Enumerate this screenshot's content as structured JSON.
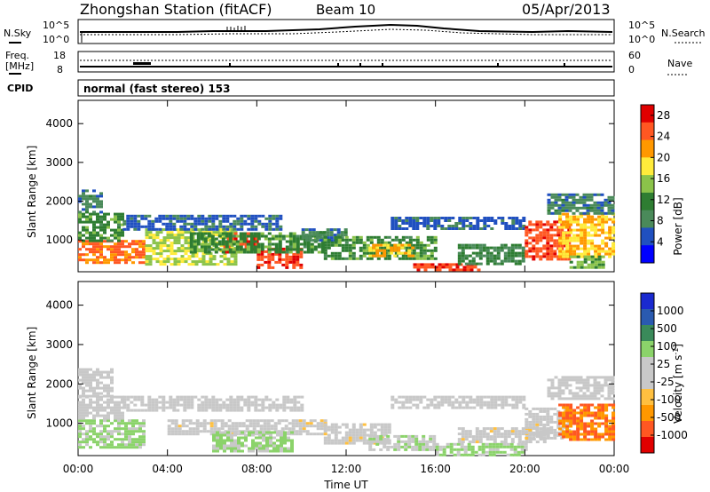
{
  "header": {
    "title": "Zhongshan Station (fitACF)",
    "beam": "Beam 10",
    "date": "05/Apr/2013"
  },
  "strip_labels": {
    "nsky": "N.Sky",
    "nsearch": "N.Search",
    "freq_line1": "Freq.",
    "freq_line2": "[MHz]",
    "nave": "Nave",
    "cpid": "CPID",
    "cpid_value": "normal (fast stereo) 153",
    "sky_top": "10^5",
    "sky_bottom": "10^0",
    "search_top": "10^5",
    "search_bottom": "10^0",
    "freq_top": "18",
    "freq_bottom": "8",
    "nave_top": "60",
    "nave_bottom": "0"
  },
  "axes": {
    "ylabel": "Slant Range [km]",
    "xlabel": "Time UT",
    "yticks": [
      "1000",
      "2000",
      "3000",
      "4000"
    ],
    "xticks": [
      "00:00",
      "04:00",
      "08:00",
      "12:00",
      "16:00",
      "20:00",
      "00:00"
    ]
  },
  "colors": {
    "power": [
      "#0000ff",
      "#2050c0",
      "#4a8a5a",
      "#2e7d32",
      "#8bc34a",
      "#ffeb3b",
      "#ff9800",
      "#ff5722",
      "#e00000"
    ],
    "velocity": [
      "#e00000",
      "#ff5722",
      "#ff9800",
      "#ffc040",
      "#c8c8c8",
      "#c8c8c8",
      "#8bd36a",
      "#3a8a5a",
      "#2a5ab0",
      "#1a2ad0"
    ]
  },
  "chart_data": [
    {
      "type": "heatmap",
      "title": "",
      "xlabel": "",
      "ylabel": "Slant Range [km]",
      "x_unit": "hours UT",
      "xlim": [
        0,
        24
      ],
      "ylim": [
        180,
        4600
      ],
      "colorbar": {
        "label": "Power [dB]",
        "ticks": [
          "4",
          "8",
          "12",
          "16",
          "20",
          "24",
          "28"
        ],
        "range": [
          0,
          30
        ]
      },
      "regions": [
        {
          "t": [
            0,
            3
          ],
          "r": [
            400,
            1000
          ],
          "value": 24
        },
        {
          "t": [
            0,
            2
          ],
          "r": [
            1000,
            1700
          ],
          "value": 12
        },
        {
          "t": [
            0,
            1
          ],
          "r": [
            1700,
            2300
          ],
          "value": 8
        },
        {
          "t": [
            3,
            7
          ],
          "r": [
            400,
            1300
          ],
          "value": 16
        },
        {
          "t": [
            2,
            9
          ],
          "r": [
            1300,
            1650
          ],
          "value": 6
        },
        {
          "t": [
            6.5,
            8
          ],
          "r": [
            700,
            1200
          ],
          "value": 26
        },
        {
          "t": [
            8,
            10
          ],
          "r": [
            300,
            800
          ],
          "value": 26
        },
        {
          "t": [
            5,
            11
          ],
          "r": [
            700,
            1200
          ],
          "value": 12
        },
        {
          "t": [
            10,
            12
          ],
          "r": [
            1000,
            1300
          ],
          "value": 8
        },
        {
          "t": [
            11,
            16
          ],
          "r": [
            500,
            1100
          ],
          "value": 12
        },
        {
          "t": [
            13,
            15
          ],
          "r": [
            600,
            900
          ],
          "value": 20
        },
        {
          "t": [
            15,
            18
          ],
          "r": [
            200,
            400
          ],
          "value": 26
        },
        {
          "t": [
            14,
            20
          ],
          "r": [
            1300,
            1600
          ],
          "value": 6
        },
        {
          "t": [
            17,
            20
          ],
          "r": [
            400,
            900
          ],
          "value": 10
        },
        {
          "t": [
            20,
            22
          ],
          "r": [
            500,
            1500
          ],
          "value": 26
        },
        {
          "t": [
            21.5,
            24
          ],
          "r": [
            600,
            1700
          ],
          "value": 20
        },
        {
          "t": [
            21,
            24
          ],
          "r": [
            1700,
            2200
          ],
          "value": 8
        },
        {
          "t": [
            22,
            23.5
          ],
          "r": [
            300,
            600
          ],
          "value": 14
        }
      ]
    },
    {
      "type": "heatmap",
      "title": "",
      "xlabel": "Time UT",
      "ylabel": "Slant Range [km]",
      "x_unit": "hours UT",
      "xlim": [
        0,
        24
      ],
      "ylim": [
        180,
        4600
      ],
      "colorbar": {
        "label": "Velocity [m s^-1]",
        "ticks": [
          "1000",
          "500",
          "100",
          "25",
          "-25",
          "-100",
          "-500",
          "-1000"
        ],
        "range": [
          -1200,
          1200
        ]
      },
      "regions": [
        {
          "t": [
            0,
            3
          ],
          "r": [
            400,
            1100
          ],
          "value": -300
        },
        {
          "t": [
            0,
            2
          ],
          "r": [
            1100,
            1700
          ],
          "value": -60
        },
        {
          "t": [
            0,
            1.5
          ],
          "r": [
            1700,
            2400
          ],
          "value": 0
        },
        {
          "t": [
            2,
            10
          ],
          "r": [
            1300,
            1700
          ],
          "value": 0
        },
        {
          "t": [
            4,
            11
          ],
          "r": [
            700,
            1100
          ],
          "value": 80
        },
        {
          "t": [
            6,
            9.5
          ],
          "r": [
            300,
            800
          ],
          "value": -300
        },
        {
          "t": [
            11,
            14
          ],
          "r": [
            500,
            1000
          ],
          "value": 80
        },
        {
          "t": [
            13,
            16
          ],
          "r": [
            300,
            700
          ],
          "value": -150
        },
        {
          "t": [
            16,
            20
          ],
          "r": [
            200,
            500
          ],
          "value": -300
        },
        {
          "t": [
            17,
            21
          ],
          "r": [
            500,
            900
          ],
          "value": 80
        },
        {
          "t": [
            20,
            22
          ],
          "r": [
            600,
            1400
          ],
          "value": 80
        },
        {
          "t": [
            21.5,
            24
          ],
          "r": [
            600,
            1500
          ],
          "value": 700
        },
        {
          "t": [
            21,
            24
          ],
          "r": [
            1600,
            2200
          ],
          "value": 0
        },
        {
          "t": [
            14,
            20
          ],
          "r": [
            1400,
            1700
          ],
          "value": 0
        }
      ]
    }
  ]
}
